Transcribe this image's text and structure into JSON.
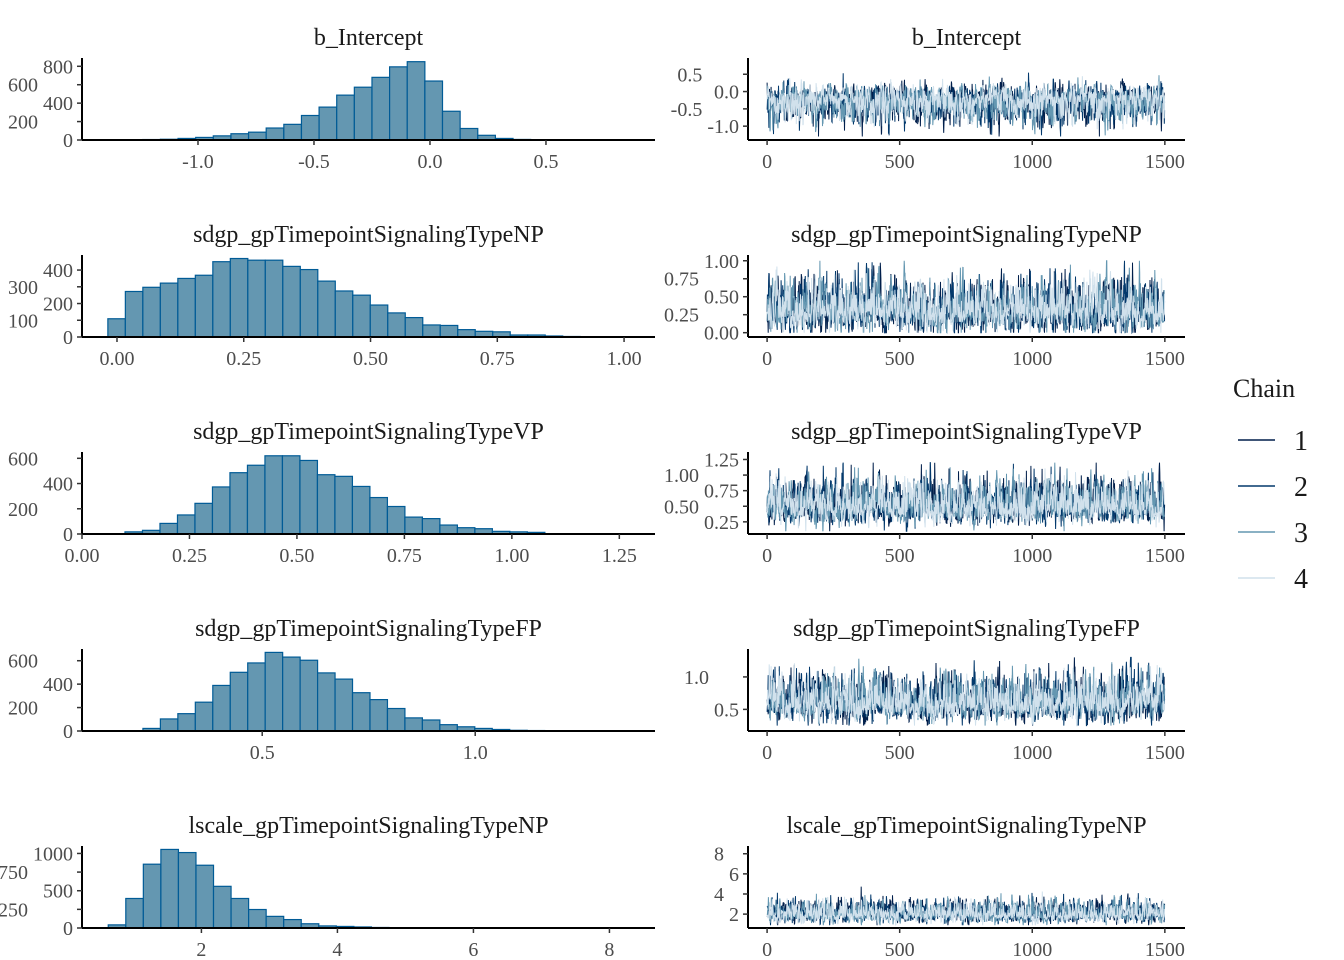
{
  "colors": {
    "hist_fill": "#6497b1",
    "hist_stroke": "#005b96",
    "axis": "#000000",
    "chains": [
      "#011f4b",
      "#03396c",
      "#6497b1",
      "#d1e1ec"
    ]
  },
  "legend": {
    "title": "Chain",
    "entries": [
      "1",
      "2",
      "3",
      "4"
    ]
  },
  "chart_data": [
    {
      "type": "bar",
      "panel": "histogram",
      "title": "b_Intercept",
      "bin_start": -1.39,
      "bin_width": 0.076,
      "counts": [
        2,
        3,
        5,
        8,
        17,
        28,
        45,
        68,
        85,
        130,
        170,
        266,
        357,
        487,
        573,
        680,
        794,
        850,
        640,
        312,
        125,
        51,
        17,
        6
      ],
      "xlim": [
        -1.5,
        0.97
      ],
      "xticks": [
        -1,
        -0.5,
        0,
        0.5
      ],
      "xtick_labels": [
        "-1.0",
        "-0.5",
        "0.0",
        "0.5"
      ],
      "ylim": [
        0,
        890
      ],
      "yticks": [
        0,
        200,
        400,
        600,
        800
      ],
      "ytick_labels": [
        "0",
        "200",
        "400",
        "600",
        "800"
      ]
    },
    {
      "type": "line",
      "panel": "trace",
      "title": "b_Intercept",
      "iterations": 1500,
      "xlim": [
        -72,
        1576
      ],
      "xticks": [
        0,
        500,
        1000,
        1500
      ],
      "xtick_labels": [
        "0",
        "500",
        "1000",
        "1500"
      ],
      "ylim": [
        -1.4,
        0.97
      ],
      "yticks": [
        -1,
        -0.5,
        0,
        0.5
      ],
      "ytick_labels": [
        "-1.0",
        "-0.5",
        "0.0",
        "0.5"
      ],
      "chains": [
        {
          "name": "1",
          "mean": -0.25,
          "sd": 0.22
        },
        {
          "name": "2",
          "mean": -0.25,
          "sd": 0.22
        },
        {
          "name": "3",
          "mean": -0.25,
          "sd": 0.22
        },
        {
          "name": "4",
          "mean": -0.25,
          "sd": 0.2
        }
      ],
      "skew": "left",
      "min": -1.3,
      "max": 0.75
    },
    {
      "type": "bar",
      "panel": "histogram",
      "title": "sdgp_gpTimepointSignalingTypeNP",
      "bin_start": -0.018,
      "bin_width": 0.0345,
      "counts": [
        109,
        272,
        297,
        322,
        350,
        369,
        450,
        469,
        459,
        459,
        422,
        403,
        334,
        275,
        250,
        191,
        144,
        116,
        72,
        69,
        44,
        34,
        31,
        12,
        12,
        6,
        3
      ],
      "xlim": [
        -0.069,
        1.061
      ],
      "xticks": [
        0,
        0.25,
        0.5,
        0.75,
        1
      ],
      "xtick_labels": [
        "0.00",
        "0.25",
        "0.50",
        "0.75",
        "1.00"
      ],
      "ylim": [
        0,
        490
      ],
      "yticks": [
        0,
        100,
        200,
        300,
        400
      ],
      "ytick_labels": [
        "0",
        "100",
        "200",
        "300",
        "400"
      ]
    },
    {
      "type": "line",
      "panel": "trace",
      "title": "sdgp_gpTimepointSignalingTypeNP",
      "iterations": 1500,
      "xlim": [
        -72,
        1576
      ],
      "xticks": [
        0,
        500,
        1000,
        1500
      ],
      "xtick_labels": [
        "0",
        "500",
        "1000",
        "1500"
      ],
      "ylim": [
        -0.06,
        1.08
      ],
      "yticks": [
        0,
        0.25,
        0.5,
        0.75,
        1
      ],
      "ytick_labels": [
        "0.00",
        "0.25",
        "0.50",
        "0.75",
        "1.00"
      ],
      "chains": [
        {
          "name": "1",
          "mean": 0.3,
          "sd": 0.17
        },
        {
          "name": "2",
          "mean": 0.3,
          "sd": 0.17
        },
        {
          "name": "3",
          "mean": 0.3,
          "sd": 0.17
        },
        {
          "name": "4",
          "mean": 0.3,
          "sd": 0.16
        }
      ],
      "skew": "right",
      "min": 0.0,
      "max": 1.0
    },
    {
      "type": "bar",
      "panel": "histogram",
      "title": "sdgp_gpTimepointSignalingTypeVP",
      "bin_start": 0.1,
      "bin_width": 0.0407,
      "counts": [
        17,
        29,
        84,
        151,
        243,
        373,
        486,
        545,
        620,
        620,
        583,
        470,
        457,
        377,
        289,
        218,
        134,
        122,
        71,
        50,
        42,
        21,
        17,
        13
      ],
      "xlim": [
        0,
        1.333
      ],
      "xticks": [
        0,
        0.25,
        0.5,
        0.75,
        1,
        1.25
      ],
      "xtick_labels": [
        "0.00",
        "0.25",
        "0.50",
        "0.75",
        "1.00",
        "1.25"
      ],
      "ylim": [
        0,
        650
      ],
      "yticks": [
        0,
        200,
        400,
        600
      ],
      "ytick_labels": [
        "0",
        "200",
        "400",
        "600"
      ]
    },
    {
      "type": "line",
      "panel": "trace",
      "title": "sdgp_gpTimepointSignalingTypeVP",
      "iterations": 1500,
      "xlim": [
        -72,
        1576
      ],
      "xticks": [
        0,
        500,
        1000,
        1500
      ],
      "xtick_labels": [
        "0",
        "500",
        "1000",
        "1500"
      ],
      "ylim": [
        0.055,
        1.37
      ],
      "yticks": [
        0.25,
        0.5,
        0.75,
        1,
        1.25
      ],
      "ytick_labels": [
        "0.25",
        "0.50",
        "0.75",
        "1.00",
        "1.25"
      ],
      "chains": [
        {
          "name": "1",
          "mean": 0.5,
          "sd": 0.17
        },
        {
          "name": "2",
          "mean": 0.5,
          "sd": 0.17
        },
        {
          "name": "3",
          "mean": 0.5,
          "sd": 0.17
        },
        {
          "name": "4",
          "mean": 0.5,
          "sd": 0.16
        }
      ],
      "skew": "right",
      "min": 0.1,
      "max": 1.2
    },
    {
      "type": "bar",
      "panel": "histogram",
      "title": "sdgp_gpTimepointSignalingTypeFP",
      "bin_start": 0.22,
      "bin_width": 0.041,
      "counts": [
        22,
        103,
        148,
        246,
        389,
        501,
        581,
        671,
        631,
        604,
        496,
        443,
        327,
        268,
        192,
        112,
        94,
        54,
        36,
        22,
        13,
        6,
        4,
        3,
        2,
        2,
        1
      ],
      "xlim": [
        0.077,
        1.422
      ],
      "xticks": [
        0.5,
        1
      ],
      "xtick_labels": [
        "0.5",
        "1.0"
      ],
      "ylim": [
        0,
        700
      ],
      "yticks": [
        0,
        200,
        400,
        600
      ],
      "ytick_labels": [
        "0",
        "200",
        "400",
        "600"
      ]
    },
    {
      "type": "line",
      "panel": "trace",
      "title": "sdgp_gpTimepointSignalingTypeFP",
      "iterations": 1500,
      "xlim": [
        -72,
        1576
      ],
      "xticks": [
        0,
        500,
        1000,
        1500
      ],
      "xtick_labels": [
        "0",
        "500",
        "1000",
        "1500"
      ],
      "ylim": [
        0.167,
        1.43
      ],
      "yticks": [
        0.5,
        1
      ],
      "ytick_labels": [
        "0.5",
        "1.0"
      ],
      "chains": [
        {
          "name": "1",
          "mean": 0.6,
          "sd": 0.17
        },
        {
          "name": "2",
          "mean": 0.6,
          "sd": 0.17
        },
        {
          "name": "3",
          "mean": 0.6,
          "sd": 0.17
        },
        {
          "name": "4",
          "mean": 0.6,
          "sd": 0.16
        }
      ],
      "skew": "right",
      "min": 0.25,
      "max": 1.3
    },
    {
      "type": "bar",
      "panel": "histogram",
      "title": "lscale_gpTimepointSignalingTypeNP",
      "bin_start": 0.63,
      "bin_width": 0.258,
      "counts": [
        42,
        396,
        856,
        1054,
        1012,
        842,
        559,
        396,
        248,
        156,
        113,
        57,
        28,
        21,
        14,
        7,
        5,
        4,
        3,
        2,
        2,
        1,
        1,
        1,
        1
      ],
      "xlim": [
        0.244,
        8.67
      ],
      "xticks": [
        2,
        4,
        6,
        8
      ],
      "xtick_labels": [
        "2",
        "4",
        "6",
        "8"
      ],
      "ylim": [
        0,
        1100
      ],
      "yticks": [
        0,
        250,
        500,
        750,
        1000
      ],
      "ytick_labels": [
        "0",
        "250",
        "500",
        "750",
        "1000"
      ]
    },
    {
      "type": "line",
      "panel": "trace",
      "title": "lscale_gpTimepointSignalingTypeNP",
      "iterations": 1500,
      "xlim": [
        -72,
        1576
      ],
      "xticks": [
        0,
        500,
        1000,
        1500
      ],
      "xtick_labels": [
        "0",
        "500",
        "1000",
        "1500"
      ],
      "ylim": [
        0.62,
        8.77
      ],
      "yticks": [
        2,
        4,
        6,
        8
      ],
      "ytick_labels": [
        "2",
        "4",
        "6",
        "8"
      ],
      "chains": [
        {
          "name": "1",
          "mean": 2.0,
          "sd": 0.55
        },
        {
          "name": "2",
          "mean": 2.0,
          "sd": 0.55
        },
        {
          "name": "3",
          "mean": 2.0,
          "sd": 0.55
        },
        {
          "name": "4",
          "mean": 1.95,
          "sd": 0.5
        }
      ],
      "skew": "right",
      "min": 0.9,
      "max": 8.2
    }
  ]
}
